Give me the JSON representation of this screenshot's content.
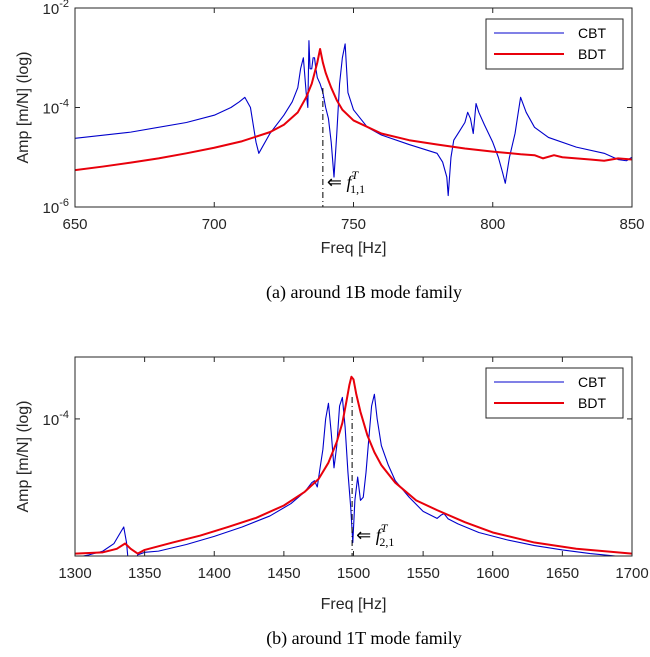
{
  "chart_data": [
    {
      "type": "line",
      "caption": "(a) around 1B mode family",
      "xlabel": "Freq [Hz]",
      "ylabel": "Amp [m/N] (log)",
      "xlim": [
        650,
        850
      ],
      "ylim_log10": [
        -6,
        -2
      ],
      "y_scale": "log",
      "xticks": [
        650,
        700,
        750,
        800,
        850
      ],
      "xtick_labels": [
        "650",
        "700",
        "750",
        "800",
        "850"
      ],
      "ytick_labels": [
        {
          "value": 1e-06,
          "base": "10",
          "exp": "-6"
        },
        {
          "value": 0.0001,
          "base": "10",
          "exp": "-4"
        },
        {
          "value": 0.01,
          "base": "10",
          "exp": "-2"
        }
      ],
      "legend_position": "top-right",
      "annotation": {
        "x": 739,
        "arrow": "⇐",
        "symbol": "f",
        "sup": "T",
        "sub": "1,1"
      },
      "series": [
        {
          "name": "CBT",
          "color": "#0000cc",
          "x": [
            650,
            670,
            690,
            700,
            706,
            709,
            711,
            713,
            715,
            716,
            720,
            725,
            728,
            730,
            731,
            732,
            733,
            733.6,
            734,
            734.4,
            735,
            735.5,
            736,
            736.5,
            737,
            738,
            739,
            740,
            741,
            742,
            743,
            744,
            745,
            746,
            747,
            748,
            750,
            755,
            760,
            770,
            780,
            782,
            783.5,
            784,
            785,
            786,
            788,
            790,
            791,
            792,
            793,
            793.5,
            794,
            795,
            797,
            800,
            802,
            803.5,
            804.5,
            806,
            808,
            809,
            810,
            812,
            815,
            820,
            830,
            840,
            845,
            848,
            850
          ],
          "y": [
            2.4e-05,
            3.2e-05,
            5e-05,
            7e-05,
            0.0001,
            0.00013,
            0.00016,
            0.0001,
            2e-05,
            1.2e-05,
            3e-05,
            7e-05,
            0.00013,
            0.00025,
            0.0006,
            0.001,
            0.0002,
            0.0001,
            0.0022,
            0.0006,
            0.0006,
            0.001,
            0.001,
            0.0006,
            0.0004,
            0.0003,
            0.0002,
            0.0001,
            6e-05,
            2e-05,
            4e-06,
            3e-05,
            0.0003,
            0.001,
            0.0019,
            0.0002,
            9e-05,
            4e-05,
            2.8e-05,
            1.8e-05,
            1.2e-05,
            8e-06,
            4e-06,
            1.7e-06,
            1e-05,
            2.2e-05,
            3.3e-05,
            5e-05,
            8e-05,
            6e-05,
            3e-05,
            6e-05,
            0.00012,
            8e-05,
            4.5e-05,
            2e-05,
            1e-05,
            5e-06,
            3e-06,
            1e-05,
            3e-05,
            7e-05,
            0.00016,
            8e-05,
            4e-05,
            2.5e-05,
            1.6e-05,
            1.2e-05,
            9e-06,
            8.5e-06,
            1e-05
          ]
        },
        {
          "name": "BDT",
          "color": "#e8000b",
          "x": [
            650,
            660,
            670,
            680,
            690,
            700,
            710,
            720,
            725,
            730,
            733,
            735,
            737,
            738,
            739,
            740,
            741,
            742,
            744,
            746,
            750,
            760,
            770,
            780,
            790,
            800,
            810,
            815,
            818,
            822,
            825,
            830,
            835,
            840,
            845,
            850
          ],
          "y": [
            5.5e-06,
            6.5e-06,
            7.8e-06,
            9.5e-06,
            1.2e-05,
            1.55e-05,
            2.1e-05,
            3.2e-05,
            4.5e-05,
            8e-05,
            0.00016,
            0.0003,
            0.0008,
            0.0015,
            0.0008,
            0.0005,
            0.00035,
            0.00025,
            0.00014,
            9e-05,
            5.5e-05,
            3e-05,
            2.2e-05,
            1.8e-05,
            1.5e-05,
            1.3e-05,
            1.15e-05,
            1.1e-05,
            9.5e-06,
            1.1e-05,
            1e-05,
            9.5e-06,
            9e-06,
            8.5e-06,
            9.5e-06,
            9e-06
          ]
        }
      ]
    },
    {
      "type": "line",
      "caption": "(b) around 1T mode family",
      "xlabel": "Freq [Hz]",
      "ylabel": "Amp [m/N] (log)",
      "xlim": [
        1300,
        1700
      ],
      "ylim_log10": [
        -5.55,
        -3.3
      ],
      "y_scale": "log",
      "xticks": [
        1300,
        1350,
        1400,
        1450,
        1500,
        1550,
        1600,
        1650,
        1700
      ],
      "xtick_labels": [
        "1300",
        "1350",
        "1400",
        "1450",
        "1500",
        "1550",
        "1600",
        "1650",
        "1700"
      ],
      "ytick_labels": [
        {
          "value": 0.0001,
          "base": "10",
          "exp": "-4"
        }
      ],
      "legend_position": "top-right",
      "annotation": {
        "x": 1499,
        "arrow": "⇐",
        "symbol": "f",
        "sup": "T",
        "sub": "2,1"
      },
      "series": [
        {
          "name": "CBT",
          "color": "#0000cc",
          "x": [
            1300,
            1310,
            1320,
            1328,
            1332,
            1335,
            1337,
            1339,
            1340,
            1342,
            1345,
            1350,
            1360,
            1380,
            1400,
            1420,
            1440,
            1455,
            1465,
            1470,
            1472,
            1474,
            1476,
            1478,
            1480,
            1482,
            1484,
            1486,
            1488,
            1490,
            1492,
            1494,
            1496,
            1498,
            1499.5,
            1501,
            1503,
            1505,
            1507,
            1509,
            1511,
            1513,
            1515,
            1517,
            1520,
            1525,
            1530,
            1540,
            1550,
            1560,
            1563,
            1565,
            1568,
            1575,
            1590,
            1610,
            1630,
            1650,
            1670,
            1690,
            1700
          ],
          "y": [
            2.7e-06,
            2.9e-06,
            3.2e-06,
            3.9e-06,
            5e-06,
            6e-06,
            4e-06,
            1.8e-06,
            1.2e-06,
            1.9e-06,
            2.9e-06,
            3.1e-06,
            3.2e-06,
            3.8e-06,
            4.7e-06,
            6e-06,
            8e-06,
            1.1e-05,
            1.5e-05,
            1.9e-05,
            2e-05,
            1.7e-05,
            2.8e-05,
            4.5e-05,
            0.0001,
            0.00015,
            7e-05,
            2.8e-05,
            5e-05,
            0.00014,
            0.000175,
            8e-05,
            2.5e-05,
            1e-05,
            4e-06,
            1.2e-05,
            2.2e-05,
            1.2e-05,
            1.3e-05,
            2.5e-05,
            6e-05,
            0.00014,
            0.00019,
            0.0001,
            5e-05,
            3e-05,
            2e-05,
            1.3e-05,
            9e-06,
            7.5e-06,
            8.2e-06,
            8.5e-06,
            7.4e-06,
            6.5e-06,
            5.2e-06,
            4.3e-06,
            3.7e-06,
            3.3e-06,
            3e-06,
            2.8e-06,
            2.7e-06
          ]
        },
        {
          "name": "BDT",
          "color": "#e8000b",
          "x": [
            1300,
            1320,
            1330,
            1336,
            1340,
            1345,
            1350,
            1370,
            1390,
            1410,
            1430,
            1450,
            1465,
            1475,
            1482,
            1488,
            1492,
            1495,
            1497,
            1498.5,
            1500,
            1502,
            1505,
            1510,
            1515,
            1520,
            1530,
            1545,
            1560,
            1580,
            1600,
            1630,
            1660,
            1700
          ],
          "y": [
            3e-06,
            3.1e-06,
            3.4e-06,
            3.9e-06,
            3.4e-06,
            3e-06,
            3.3e-06,
            4e-06,
            4.8e-06,
            6e-06,
            7.6e-06,
            1.05e-05,
            1.5e-05,
            2.1e-05,
            3.2e-05,
            5.5e-05,
            9e-05,
            0.00016,
            0.00024,
            0.0003,
            0.00028,
            0.00019,
            0.00012,
            6.5e-05,
            4.2e-05,
            3e-05,
            1.9e-05,
            1.2e-05,
            9.3e-06,
            6.8e-06,
            5.2e-06,
            4e-06,
            3.4e-06,
            3e-06
          ]
        }
      ]
    }
  ]
}
